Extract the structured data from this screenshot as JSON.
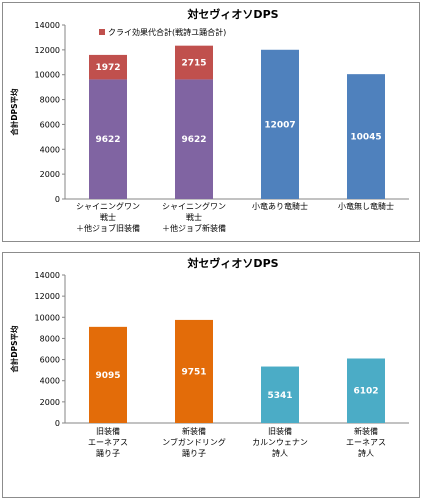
{
  "chart_data": [
    {
      "type": "bar",
      "stacked": true,
      "title": "対セヴィオソDPS",
      "ylabel": "合計DPS平均",
      "ylim": [
        0,
        14000
      ],
      "yticks": [
        0,
        2000,
        4000,
        6000,
        8000,
        10000,
        12000,
        14000
      ],
      "grid": false,
      "legend_position": "top-left",
      "categories": [
        [
          "シャイニングワン",
          "戦士",
          "＋他ジョブ旧装備"
        ],
        [
          "シャイニングワン",
          "戦士",
          "＋他ジョブ新装備"
        ],
        [
          "小竜あり竜騎士"
        ],
        [
          "小竜無し竜騎士"
        ]
      ],
      "series": [
        {
          "values": [
            9622,
            9622,
            12007,
            10045
          ],
          "colors": [
            "#8064a2",
            "#8064a2",
            "#4f81bd",
            "#4f81bd"
          ]
        },
        {
          "name": "クライ効果代合計(戦詩ユ踊合計)",
          "values": [
            1972,
            2715,
            null,
            null
          ],
          "color": "#c0504d"
        }
      ]
    },
    {
      "type": "bar",
      "title": "対セヴィオソDPS",
      "ylabel": "合計DPS平均",
      "ylim": [
        0,
        14000
      ],
      "yticks": [
        0,
        2000,
        4000,
        6000,
        8000,
        10000,
        12000,
        14000
      ],
      "grid": false,
      "categories": [
        [
          "旧装備",
          "エーネアス",
          "踊り子"
        ],
        [
          "新装備",
          "ンブガンドリング",
          "踊り子"
        ],
        [
          "旧装備",
          "カルンウェナン",
          "詩人"
        ],
        [
          "新装備",
          "エーネアス",
          "詩人"
        ]
      ],
      "series": [
        {
          "values": [
            9095,
            9751,
            5341,
            6102
          ],
          "colors": [
            "#e36c09",
            "#e36c09",
            "#4bacc6",
            "#4bacc6"
          ]
        }
      ]
    }
  ]
}
